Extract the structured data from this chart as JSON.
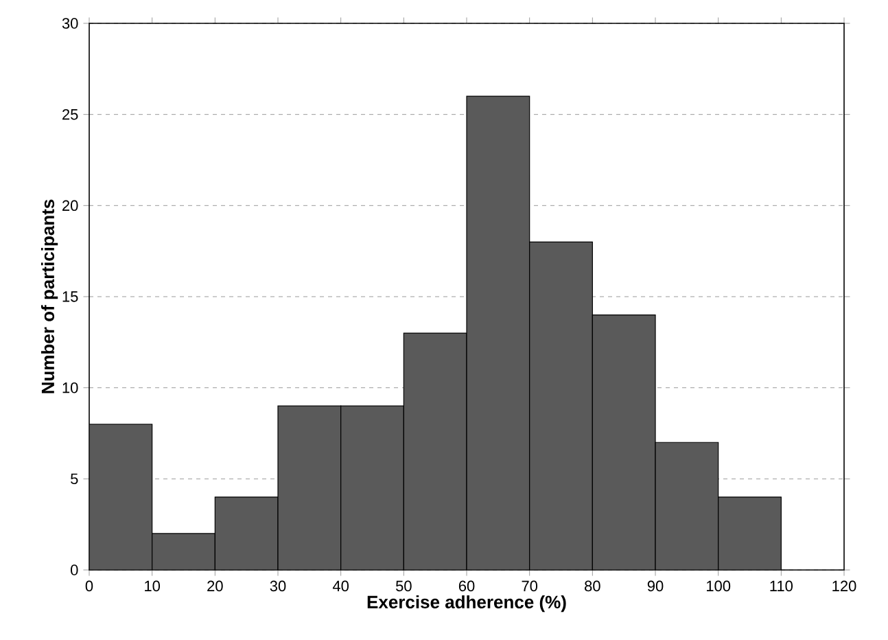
{
  "chart_data": {
    "type": "histogram",
    "xlabel": "Exercise adherence (%)",
    "ylabel": "Number of participants",
    "bins": [
      0,
      10,
      20,
      30,
      40,
      50,
      60,
      70,
      80,
      90,
      100,
      110
    ],
    "values": [
      8,
      2,
      4,
      9,
      9,
      13,
      26,
      18,
      14,
      7,
      4
    ],
    "color": "#5a5a5a",
    "xlim": [
      0,
      120
    ],
    "ylim": [
      0,
      30
    ],
    "xticks": [
      0,
      10,
      20,
      30,
      40,
      50,
      60,
      70,
      80,
      90,
      100,
      110,
      120
    ],
    "yticks": [
      0,
      5,
      10,
      15,
      20,
      25,
      30
    ],
    "grid": "y"
  }
}
